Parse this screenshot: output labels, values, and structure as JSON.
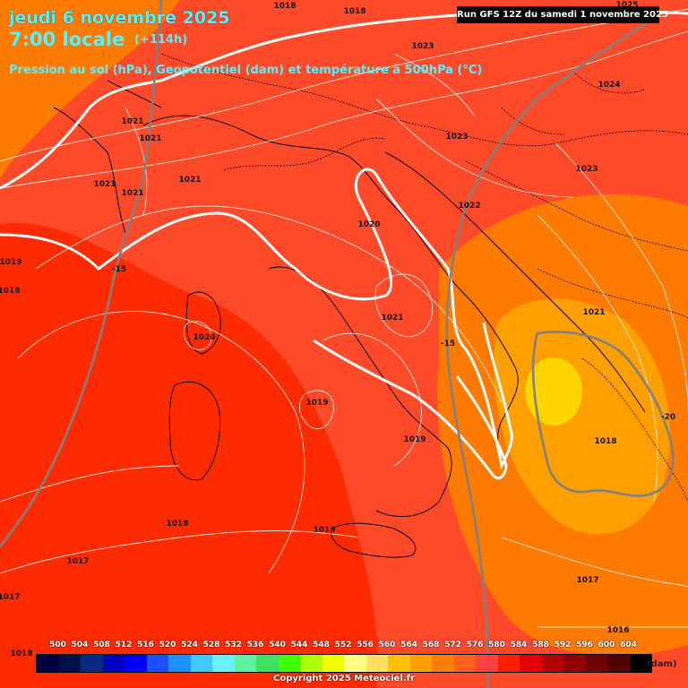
{
  "header": {
    "date": "jeudi 6 novembre 2025",
    "time": "7:00 locale",
    "lead": "(+114h)",
    "description": "Pression au sol (hPa), Geopotentiel (dam) et température à 500hPa (°C)",
    "run": "Run GFS 12Z du samedi 1 novembre 2025"
  },
  "colors": {
    "deep": "#ff2b00",
    "mid": "#ff4a2a",
    "orange": "#ff7a00",
    "amber": "#ffa000",
    "yellow": "#ffd500",
    "isobar": "#ffffff",
    "isotherm": "#808080"
  },
  "isobar_labels": [
    "1018",
    "1018",
    "1023",
    "1024",
    "1025",
    "1021",
    "1021",
    "1021",
    "1021",
    "1021",
    "1023",
    "1023",
    "1022",
    "1020",
    "1019",
    "1018",
    "1020",
    "1021",
    "1021",
    "1019",
    "1019",
    "1018",
    "1018",
    "1019",
    "1017",
    "1017",
    "1017",
    "1016",
    "1018"
  ],
  "temperature_labels": [
    "-15",
    "-15",
    "-20"
  ],
  "legend": {
    "unit": "(dam)",
    "labels": [
      "500",
      "504",
      "508",
      "512",
      "516",
      "520",
      "524",
      "528",
      "532",
      "536",
      "540",
      "544",
      "548",
      "552",
      "556",
      "560",
      "564",
      "568",
      "572",
      "576",
      "580",
      "584",
      "588",
      "592",
      "596",
      "600",
      "604"
    ],
    "colors": [
      "#000040",
      "#00104a",
      "#062a80",
      "#0000c0",
      "#0000ff",
      "#1e50ff",
      "#1e90ff",
      "#40c8ff",
      "#6cf0ff",
      "#60f0a0",
      "#40e060",
      "#40ff00",
      "#b0ff00",
      "#f0ff00",
      "#ffff80",
      "#ffe060",
      "#ffc000",
      "#ffa000",
      "#ff8000",
      "#ff6020",
      "#ff4040",
      "#ff2000",
      "#e00000",
      "#b00000",
      "#900000",
      "#700000",
      "#500000",
      "#000000"
    ]
  },
  "copyright": "Copyright 2025 Meteociel.fr"
}
